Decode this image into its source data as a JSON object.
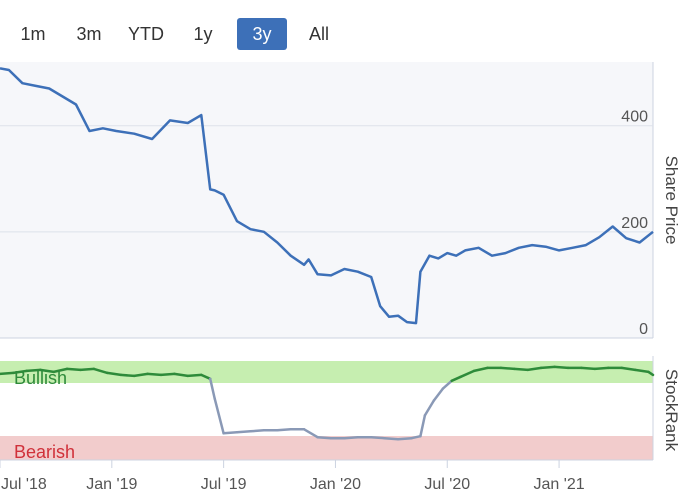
{
  "range_selector": {
    "buttons": [
      "1m",
      "3m",
      "YTD",
      "1y",
      "3y",
      "All"
    ],
    "active": "3y"
  },
  "colors": {
    "price_line": "#3d70b8",
    "bullish_zone": "#c6eeb0",
    "bearish_zone": "#f2cccc",
    "stockrank_bullish_line": "#2e8b3a",
    "stockrank_neutral_line": "#8a99b6",
    "bearish_text": "#d0313a",
    "bullish_text": "#2e8b3a",
    "active_button": "#3d70b8"
  },
  "chart_data": [
    {
      "type": "line",
      "title": "Share Price",
      "ylabel": "Share Price",
      "ylim": [
        0,
        520
      ],
      "yticks": [
        0,
        200,
        400
      ],
      "xlabels": [
        "Jul '18",
        "Jan '19",
        "Jul '19",
        "Jan '20",
        "Jul '20",
        "Jan '21"
      ],
      "x": [
        2018.5,
        2018.54,
        2018.6,
        2018.66,
        2018.72,
        2018.78,
        2018.84,
        2018.9,
        2018.96,
        2019.02,
        2019.1,
        2019.18,
        2019.26,
        2019.34,
        2019.4,
        2019.44,
        2019.46,
        2019.5,
        2019.56,
        2019.62,
        2019.68,
        2019.74,
        2019.8,
        2019.86,
        2019.88,
        2019.92,
        2019.98,
        2020.04,
        2020.1,
        2020.16,
        2020.2,
        2020.24,
        2020.28,
        2020.32,
        2020.36,
        2020.38,
        2020.42,
        2020.46,
        2020.5,
        2020.54,
        2020.58,
        2020.64,
        2020.7,
        2020.76,
        2020.82,
        2020.88,
        2020.94,
        2021.0,
        2021.06,
        2021.12,
        2021.18,
        2021.24,
        2021.3,
        2021.36,
        2021.42
      ],
      "values": [
        508,
        505,
        480,
        475,
        470,
        455,
        440,
        390,
        395,
        390,
        385,
        375,
        410,
        405,
        420,
        280,
        278,
        270,
        220,
        205,
        200,
        180,
        155,
        138,
        148,
        120,
        118,
        130,
        125,
        115,
        60,
        40,
        42,
        30,
        28,
        125,
        155,
        150,
        160,
        155,
        165,
        170,
        155,
        160,
        170,
        175,
        172,
        165,
        170,
        175,
        190,
        210,
        188,
        180,
        200
      ]
    },
    {
      "type": "line",
      "title": "StockRank",
      "ylabel": "StockRank",
      "ylim": [
        0,
        100
      ],
      "zones": [
        {
          "label": "Bullish",
          "from": 75,
          "to": 100
        },
        {
          "label": "Bearish",
          "from": 0,
          "to": 15
        }
      ],
      "x": [
        2018.5,
        2018.56,
        2018.62,
        2018.68,
        2018.74,
        2018.8,
        2018.86,
        2018.92,
        2018.98,
        2019.04,
        2019.1,
        2019.16,
        2019.22,
        2019.28,
        2019.34,
        2019.4,
        2019.44,
        2019.46,
        2019.5,
        2019.56,
        2019.62,
        2019.68,
        2019.74,
        2019.8,
        2019.86,
        2019.92,
        2019.98,
        2020.04,
        2020.1,
        2020.16,
        2020.22,
        2020.28,
        2020.34,
        2020.38,
        2020.4,
        2020.44,
        2020.48,
        2020.52,
        2020.56,
        2020.62,
        2020.68,
        2020.74,
        2020.8,
        2020.86,
        2020.92,
        2020.98,
        2021.04,
        2021.1,
        2021.16,
        2021.22,
        2021.28,
        2021.34,
        2021.4,
        2021.42
      ],
      "values": [
        87,
        88,
        90,
        91,
        89,
        92,
        91,
        92,
        88,
        86,
        85,
        87,
        86,
        87,
        85,
        86,
        82,
        62,
        27,
        28,
        29,
        30,
        30,
        31,
        31,
        23,
        22,
        22,
        23,
        23,
        22,
        21,
        22,
        24,
        45,
        60,
        72,
        80,
        84,
        90,
        93,
        93,
        92,
        91,
        93,
        94,
        93,
        93,
        92,
        93,
        93,
        91,
        89,
        86
      ]
    }
  ]
}
